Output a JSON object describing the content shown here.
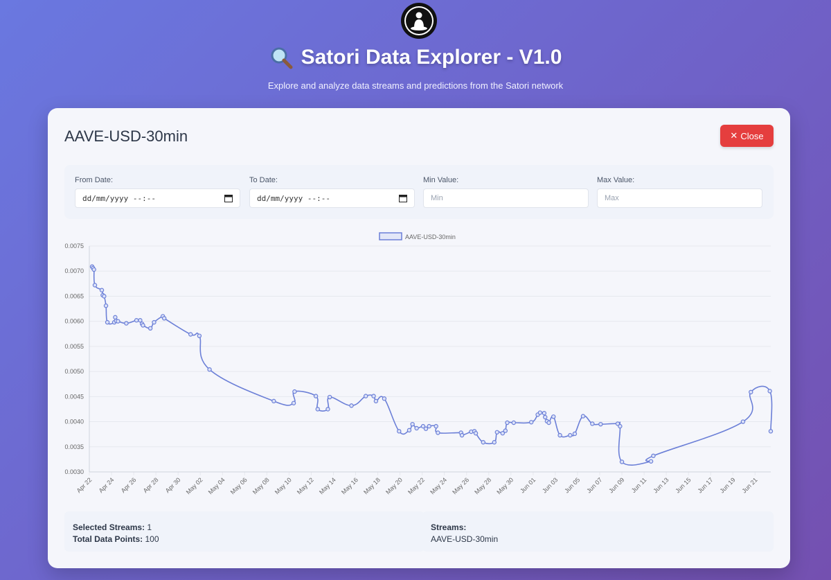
{
  "header": {
    "title": "Satori Data Explorer - V1.0",
    "subtitle": "Explore and analyze data streams and predictions from the Satori network"
  },
  "panel": {
    "title": "AAVE-USD-30min",
    "close_label": "Close"
  },
  "filters": {
    "from_label": "From Date:",
    "from_value": "dd/mm/yyyy --:--",
    "to_label": "To Date:",
    "to_value": "dd/mm/yyyy --:--",
    "min_label": "Min Value:",
    "min_placeholder": "Min",
    "max_label": "Max Value:",
    "max_placeholder": "Max"
  },
  "stats": {
    "selected_label": "Selected Streams:",
    "selected_value": "1",
    "points_label": "Total Data Points:",
    "points_value": "100",
    "streams_label": "Streams:",
    "streams_value": "AAVE-USD-30min"
  },
  "colors": {
    "accent": "#6b7fd7",
    "close": "#e53e3e"
  },
  "chart_data": {
    "type": "line",
    "legend": "top",
    "series": [
      {
        "name": "AAVE-USD-30min",
        "points": [
          [
            "2025-04-22T06:00",
            0.00709
          ],
          [
            "2025-04-22T08:00",
            0.00706
          ],
          [
            "2025-04-22T10:00",
            0.00703
          ],
          [
            "2025-04-22T12:00",
            0.00672
          ],
          [
            "2025-04-23T03:00",
            0.00662
          ],
          [
            "2025-04-23T05:00",
            0.00652
          ],
          [
            "2025-04-23T08:00",
            0.0065
          ],
          [
            "2025-04-23T12:00",
            0.00631
          ],
          [
            "2025-04-23T15:00",
            0.00598
          ],
          [
            "2025-04-24T06:00",
            0.00598
          ],
          [
            "2025-04-24T08:00",
            0.00608
          ],
          [
            "2025-04-24T10:00",
            0.00601
          ],
          [
            "2025-04-24T14:00",
            0.006
          ],
          [
            "2025-04-25T08:00",
            0.00596
          ],
          [
            "2025-04-26T06:00",
            0.00602
          ],
          [
            "2025-04-26T14:00",
            0.00602
          ],
          [
            "2025-04-26T18:00",
            0.00595
          ],
          [
            "2025-04-26T20:00",
            0.00592
          ],
          [
            "2025-04-27T12:00",
            0.00586
          ],
          [
            "2025-04-27T20:00",
            0.00598
          ],
          [
            "2025-04-28T15:00",
            0.0061
          ],
          [
            "2025-04-28T18:00",
            0.00606
          ],
          [
            "2025-05-01T03:00",
            0.00574
          ],
          [
            "2025-05-01T22:00",
            0.00571
          ],
          [
            "2025-05-02T20:00",
            0.00504
          ],
          [
            "2025-05-08T15:00",
            0.00441
          ],
          [
            "2025-05-10T10:00",
            0.00437
          ],
          [
            "2025-05-10T12:00",
            0.0046
          ],
          [
            "2025-05-12T10:00",
            0.00451
          ],
          [
            "2025-05-12T14:00",
            0.00425
          ],
          [
            "2025-05-13T12:00",
            0.00425
          ],
          [
            "2025-05-13T16:00",
            0.00449
          ],
          [
            "2025-05-15T15:00",
            0.00432
          ],
          [
            "2025-05-16T22:00",
            0.00451
          ],
          [
            "2025-05-17T15:00",
            0.00451
          ],
          [
            "2025-05-17T20:00",
            0.00441
          ],
          [
            "2025-05-18T14:00",
            0.00446
          ],
          [
            "2025-05-19T22:00",
            0.00381
          ],
          [
            "2025-05-20T20:00",
            0.00383
          ],
          [
            "2025-05-21T03:00",
            0.00395
          ],
          [
            "2025-05-21T12:00",
            0.00387
          ],
          [
            "2025-05-22T02:00",
            0.00391
          ],
          [
            "2025-05-22T08:00",
            0.00386
          ],
          [
            "2025-05-22T15:00",
            0.00391
          ],
          [
            "2025-05-23T06:00",
            0.00391
          ],
          [
            "2025-05-23T10:00",
            0.00378
          ],
          [
            "2025-05-25T12:00",
            0.00378
          ],
          [
            "2025-05-25T14:00",
            0.00373
          ],
          [
            "2025-05-26T10:00",
            0.0038
          ],
          [
            "2025-05-26T17:00",
            0.00381
          ],
          [
            "2025-05-26T20:00",
            0.00377
          ],
          [
            "2025-05-27T12:00",
            0.00359
          ],
          [
            "2025-05-28T12:00",
            0.00359
          ],
          [
            "2025-05-28T18:00",
            0.00379
          ],
          [
            "2025-05-29T06:00",
            0.00377
          ],
          [
            "2025-05-29T12:00",
            0.00382
          ],
          [
            "2025-05-29T16:00",
            0.00398
          ],
          [
            "2025-05-30T06:00",
            0.00398
          ],
          [
            "2025-05-31T20:00",
            0.00399
          ],
          [
            "2025-06-01T10:00",
            0.00414
          ],
          [
            "2025-06-01T15:00",
            0.00418
          ],
          [
            "2025-06-02T00:00",
            0.00417
          ],
          [
            "2025-06-02T02:00",
            0.00409
          ],
          [
            "2025-06-02T06:00",
            0.00401
          ],
          [
            "2025-06-02T10:00",
            0.00398
          ],
          [
            "2025-06-02T20:00",
            0.0041
          ],
          [
            "2025-06-03T10:00",
            0.00373
          ],
          [
            "2025-06-04T08:00",
            0.00373
          ],
          [
            "2025-06-04T18:00",
            0.00376
          ],
          [
            "2025-06-05T12:00",
            0.00411
          ],
          [
            "2025-06-06T08:00",
            0.00396
          ],
          [
            "2025-06-07T02:00",
            0.00395
          ],
          [
            "2025-06-08T15:00",
            0.00396
          ],
          [
            "2025-06-08T20:00",
            0.00391
          ],
          [
            "2025-06-09T00:00",
            0.0032
          ],
          [
            "2025-06-11T15:00",
            0.00321
          ],
          [
            "2025-06-11T20:00",
            0.00332
          ],
          [
            "2025-06-19T22:00",
            0.004
          ],
          [
            "2025-06-20T15:00",
            0.00459
          ],
          [
            "2025-06-22T08:00",
            0.00461
          ],
          [
            "2025-06-22T10:00",
            0.00381
          ]
        ]
      }
    ],
    "ylim": [
      0.003,
      0.0075
    ],
    "yticks": [
      "0.0030",
      "0.0035",
      "0.0040",
      "0.0045",
      "0.0050",
      "0.0055",
      "0.0060",
      "0.0065",
      "0.0070",
      "0.0075"
    ],
    "xticks": [
      "Apr 22",
      "Apr 24",
      "Apr 26",
      "Apr 28",
      "Apr 30",
      "May 02",
      "May 04",
      "May 06",
      "May 08",
      "May 10",
      "May 12",
      "May 14",
      "May 16",
      "May 18",
      "May 20",
      "May 22",
      "May 24",
      "May 26",
      "May 28",
      "May 30",
      "Jun 01",
      "Jun 03",
      "Jun 05",
      "Jun 07",
      "Jun 09",
      "Jun 11",
      "Jun 13",
      "Jun 15",
      "Jun 17",
      "Jun 19",
      "Jun 21"
    ],
    "x_start": "2025-04-22",
    "x_end": "2025-06-22T10:00",
    "grid": true
  }
}
